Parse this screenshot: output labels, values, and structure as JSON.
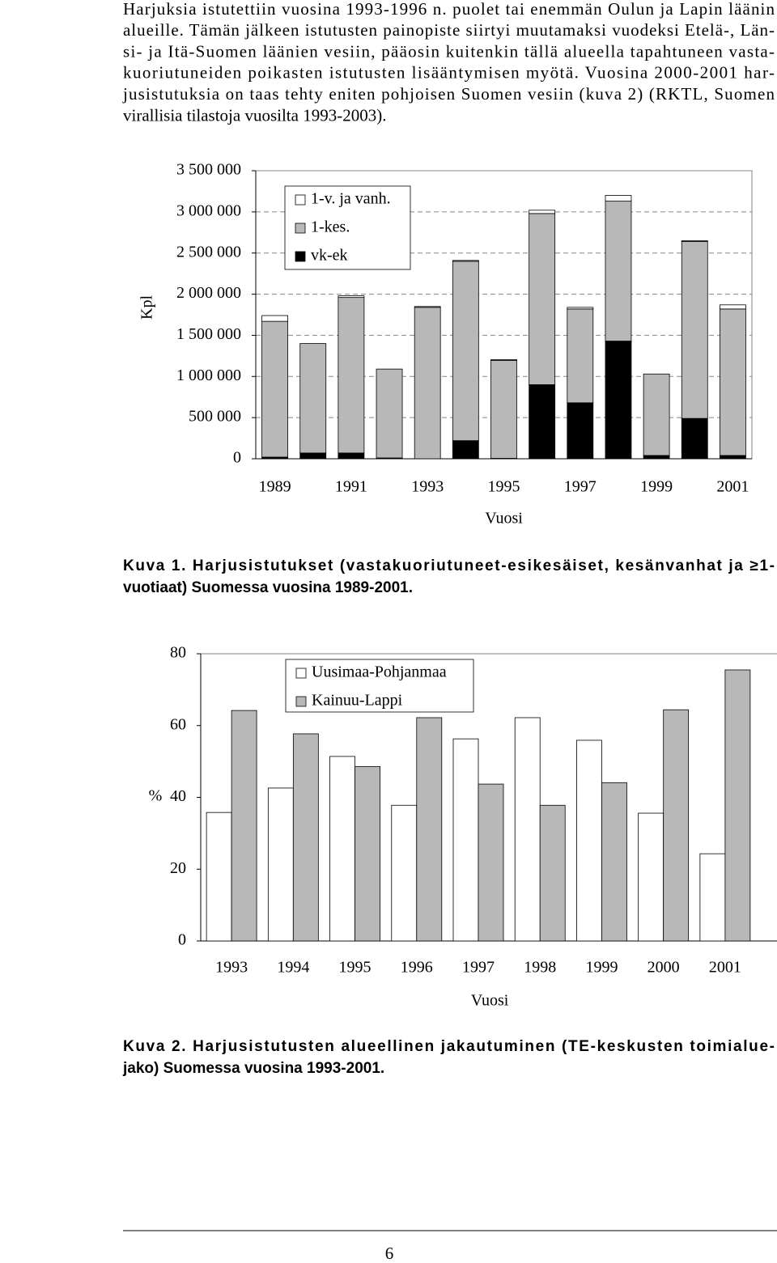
{
  "paragraph": [
    "Harjuksia istutettiin vuosina 1993-1996 n. puolet tai enemmän Oulun ja Lapin läänin",
    "alueille. Tämän jälkeen istutusten painopiste siirtyi muutamaksi vuodeksi Etelä-, Län-",
    "si- ja Itä-Suomen läänien vesiin, pääosin kuitenkin tällä alueella tapahtuneen vasta-",
    "kuoriutuneiden poikasten istutusten lisääntymisen myötä. Vuosina 2000-2001 har-",
    "jusistutuksia on taas tehty eniten pohjoisen Suomen vesiin (kuva 2) (RKTL, Suomen",
    "virallisia tilastoja vuosilta 1993-2003)."
  ],
  "chart_data": [
    {
      "type": "stacked_bar",
      "xlabel": "Vuosi",
      "ylabel": "Kpl",
      "categories": [
        "1989",
        null,
        "1991",
        null,
        "1993",
        null,
        "1995",
        null,
        "1997",
        null,
        "1999",
        null,
        "2001"
      ],
      "series": [
        {
          "name": "1-v. ja vanh.",
          "color": "#ffffff",
          "values": [
            70000,
            0,
            20000,
            0,
            10000,
            10000,
            10000,
            40000,
            20000,
            70000,
            0,
            10000,
            50000
          ]
        },
        {
          "name": "1-kes.",
          "color": "#b8b8b8",
          "values": [
            1650000,
            1330000,
            1890000,
            1080000,
            1840000,
            2180000,
            1190000,
            2080000,
            1140000,
            1700000,
            990000,
            2150000,
            1780000
          ]
        },
        {
          "name": "vk-ek",
          "color": "#000000",
          "values": [
            20000,
            70000,
            70000,
            10000,
            0,
            220000,
            5000,
            900000,
            680000,
            1430000,
            40000,
            490000,
            40000
          ]
        }
      ],
      "ylim": [
        0,
        3500000
      ],
      "yticks": [
        0,
        {
          "value": 500000,
          "label": "500 000"
        },
        {
          "value": 1000000,
          "label": "1 000 000"
        },
        {
          "value": 1500000,
          "label": "1 500 000"
        },
        {
          "value": 2000000,
          "label": "2 000 000"
        },
        {
          "value": 2500000,
          "label": "2 500 000"
        },
        {
          "value": 3000000,
          "label": "3 000 000"
        },
        {
          "value": 3500000,
          "label": "3 500 000"
        }
      ],
      "grid": true,
      "legend": "upper left"
    },
    {
      "type": "grouped_bar",
      "xlabel": "Vuosi",
      "ylabel": "%",
      "categories": [
        "1993",
        "1994",
        "1995",
        "1996",
        "1997",
        "1998",
        "1999",
        "2000",
        "2001"
      ],
      "series": [
        {
          "name": "Uusimaa-Pohjanmaa",
          "color": "#ffffff",
          "values": [
            35.8,
            42.6,
            51.4,
            37.8,
            56.3,
            62.2,
            55.9,
            35.6,
            24.3
          ]
        },
        {
          "name": "Kainuu-Lappi",
          "color": "#b8b8b8",
          "values": [
            64.2,
            57.7,
            48.6,
            62.2,
            43.7,
            37.8,
            44.1,
            64.4,
            75.5
          ]
        }
      ],
      "ylim": [
        0,
        80
      ],
      "yticks": [
        0,
        20,
        40,
        60,
        80
      ],
      "grid": false,
      "legend": "upper left"
    }
  ],
  "captions": [
    [
      "Kuva 1. Harjusistutukset (vastakuoriutuneet-esikesäiset, kesänvanhat ja ≥1-",
      "vuotiaat) Suomessa vuosina 1989-2001."
    ],
    [
      "Kuva 2. Harjusistutusten alueellinen jakautuminen (TE-keskusten toimialue-",
      "jako) Suomessa vuosina 1993-2001."
    ]
  ],
  "page_number": "6"
}
